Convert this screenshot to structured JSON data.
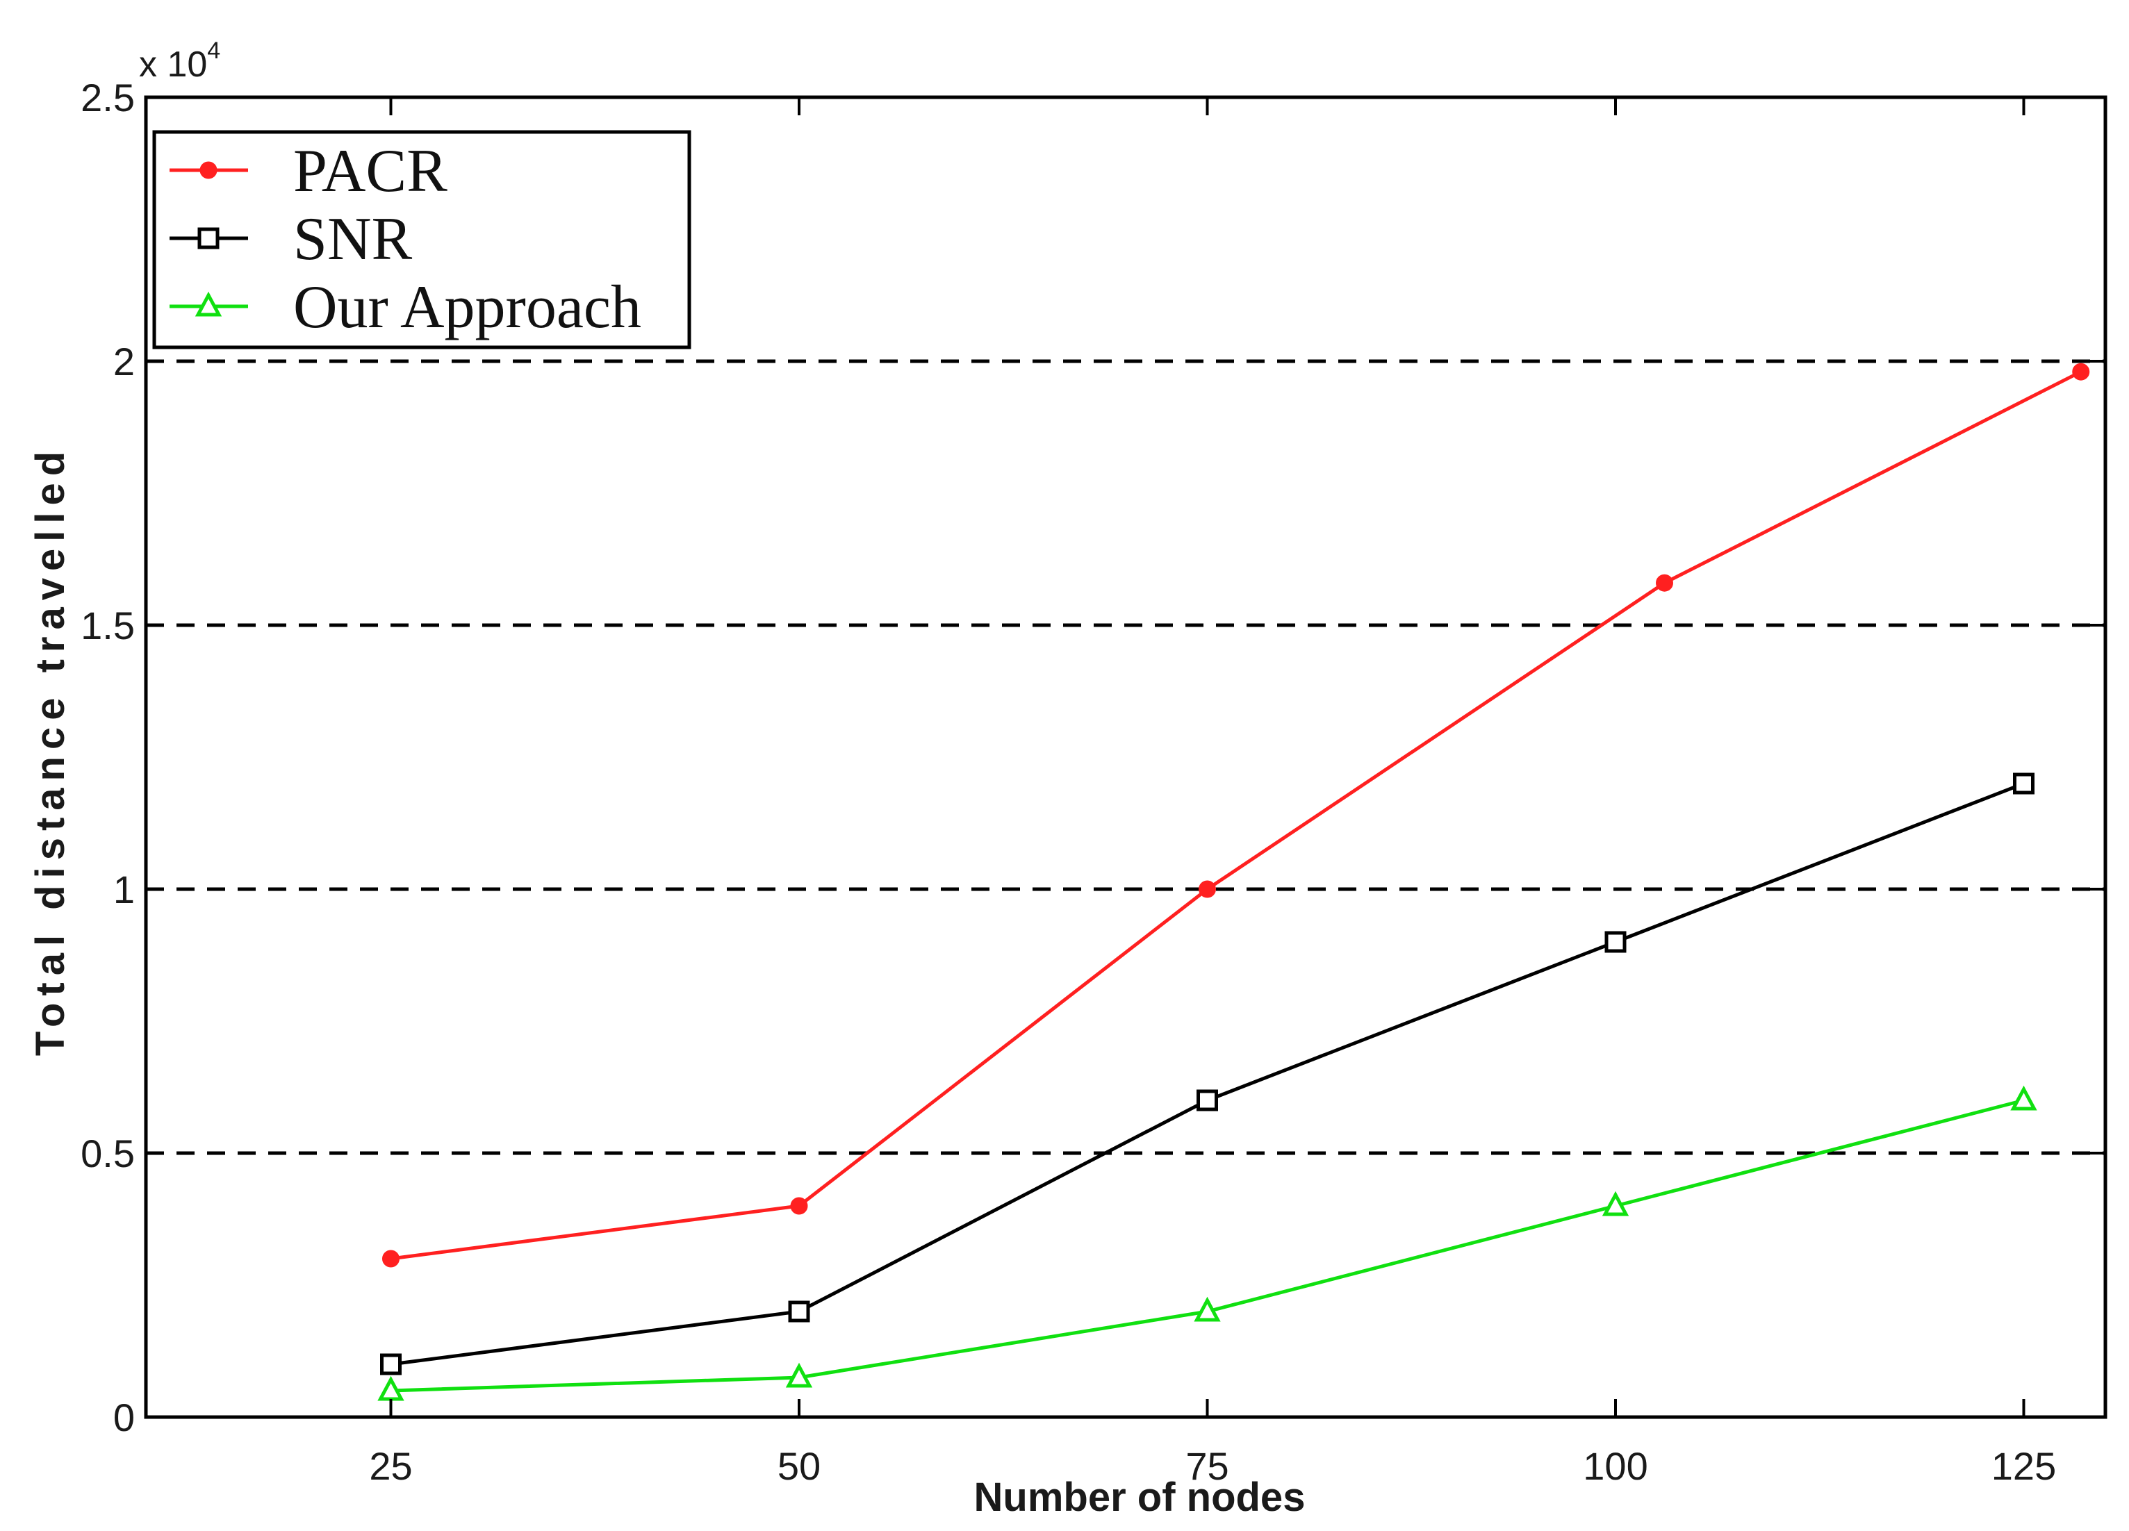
{
  "chart_data": {
    "type": "line",
    "x": [
      25,
      50,
      75,
      100,
      125
    ],
    "x_ticks": [
      "25",
      "50",
      "75",
      "100",
      "125"
    ],
    "xlim": [
      10,
      130
    ],
    "y_ticks": [
      "0",
      "0.5",
      "1",
      "1.5",
      "2",
      "2.5"
    ],
    "y_tick_values": [
      0,
      0.5,
      1,
      1.5,
      2,
      2.5
    ],
    "ylim": [
      0,
      2.5
    ],
    "y_exponent": {
      "base": "x 10",
      "power": "4"
    },
    "xlabel": "Number of nodes",
    "ylabel": "Total distance travelled",
    "grid": "horizontal dashed at 0.5, 1, 1.5, 2",
    "legend": "top-left",
    "series": [
      {
        "name": "PACR",
        "color": "#ff2020",
        "marker": "dot",
        "x": [
          25,
          50,
          75,
          103,
          128.5
        ],
        "values": [
          0.3,
          0.4,
          1.0,
          1.58,
          1.98
        ]
      },
      {
        "name": "SNR",
        "color": "#000000",
        "marker": "square",
        "x": [
          25,
          50,
          75,
          100,
          125
        ],
        "values": [
          0.1,
          0.2,
          0.6,
          0.9,
          1.2
        ]
      },
      {
        "name": "Our Approach",
        "color": "#10e010",
        "marker": "triangle",
        "x": [
          25,
          50,
          75,
          100,
          125
        ],
        "values": [
          0.05,
          0.075,
          0.2,
          0.4,
          0.6
        ]
      }
    ]
  }
}
